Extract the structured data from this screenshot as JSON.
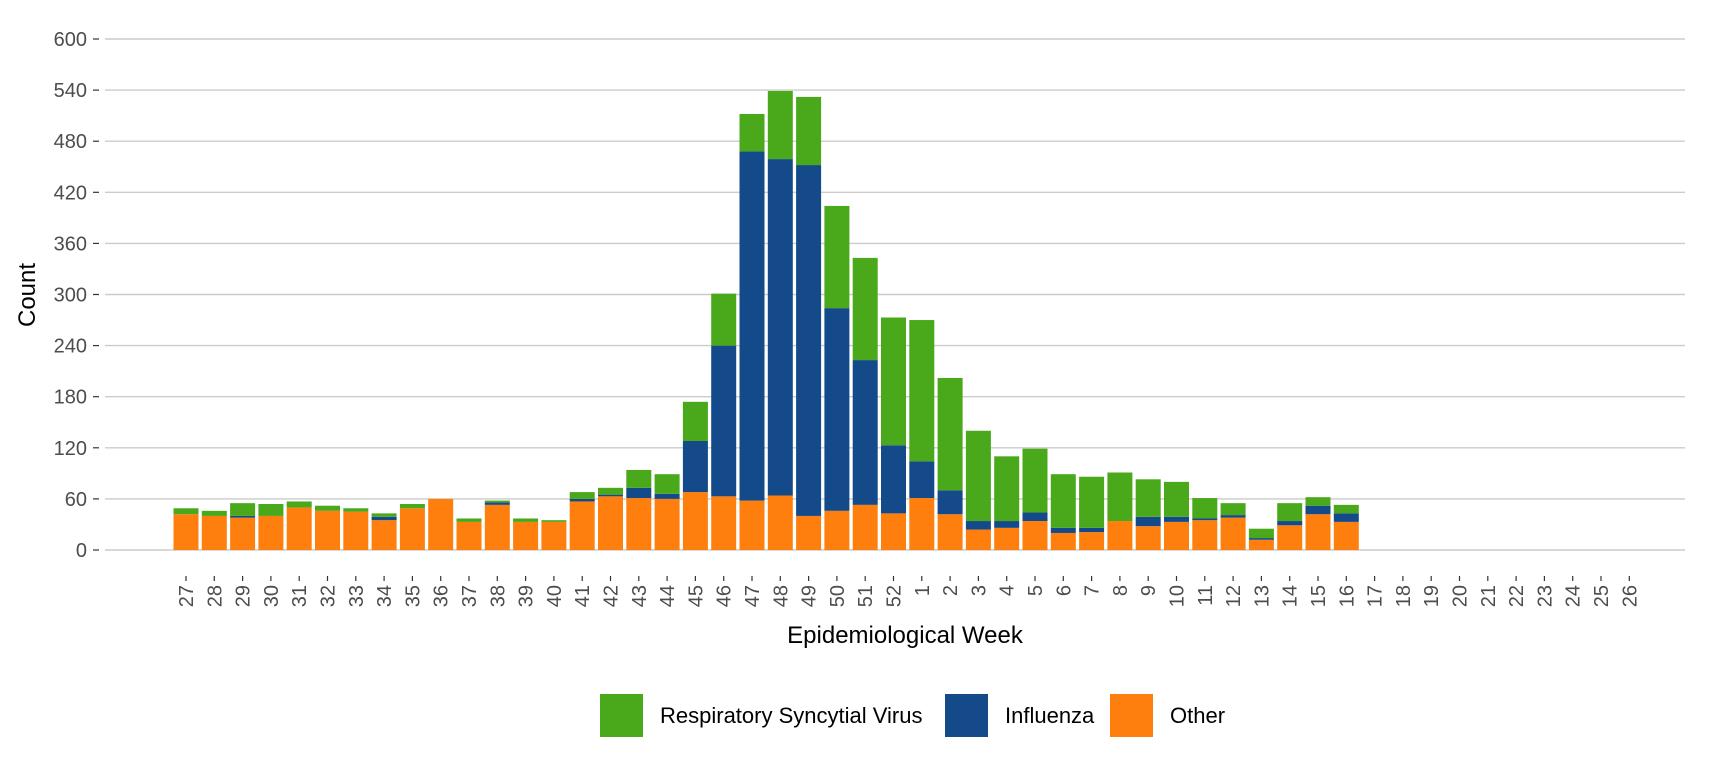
{
  "chart_data": {
    "type": "bar",
    "stacked": true,
    "xlabel": "Epidemiological Week",
    "ylabel": "Count",
    "ylim": [
      0,
      600
    ],
    "yticks": [
      0,
      60,
      120,
      180,
      240,
      300,
      360,
      420,
      480,
      540,
      600
    ],
    "grid": "horizontal",
    "legend_position": "bottom",
    "categories": [
      "27",
      "28",
      "29",
      "30",
      "31",
      "32",
      "33",
      "34",
      "35",
      "36",
      "37",
      "38",
      "39",
      "40",
      "41",
      "42",
      "43",
      "44",
      "45",
      "46",
      "47",
      "48",
      "49",
      "50",
      "51",
      "52",
      "1",
      "2",
      "3",
      "4",
      "5",
      "6",
      "7",
      "8",
      "9",
      "10",
      "11",
      "12",
      "13",
      "14",
      "15",
      "16",
      "17",
      "18",
      "19",
      "20",
      "21",
      "22",
      "23",
      "24",
      "25",
      "26"
    ],
    "series": [
      {
        "name": "Other",
        "color": "#ff7f0e",
        "values": [
          42,
          40,
          38,
          40,
          50,
          46,
          45,
          35,
          49,
          60,
          33,
          53,
          33,
          33,
          57,
          63,
          61,
          60,
          68,
          63,
          58,
          64,
          40,
          46,
          53,
          43,
          61,
          42,
          24,
          26,
          34,
          20,
          21,
          34,
          28,
          33,
          35,
          38,
          12,
          29,
          42,
          33,
          0,
          0,
          0,
          0,
          0,
          0,
          0,
          0,
          0,
          0
        ]
      },
      {
        "name": "Influenza",
        "color": "#144a8a",
        "values": [
          0,
          0,
          2,
          0,
          0,
          0,
          0,
          4,
          0,
          0,
          0,
          3,
          0,
          0,
          3,
          2,
          12,
          6,
          60,
          177,
          410,
          395,
          412,
          238,
          170,
          80,
          43,
          28,
          10,
          8,
          10,
          6,
          5,
          0,
          11,
          6,
          2,
          3,
          2,
          5,
          10,
          10,
          0,
          0,
          0,
          0,
          0,
          0,
          0,
          0,
          0,
          0
        ]
      },
      {
        "name": "Respiratory Syncytial Virus",
        "color": "#4aa81b",
        "values": [
          7,
          6,
          15,
          14,
          7,
          6,
          4,
          4,
          5,
          0,
          4,
          2,
          4,
          2,
          8,
          8,
          21,
          23,
          46,
          61,
          44,
          80,
          80,
          120,
          120,
          150,
          166,
          132,
          106,
          76,
          75,
          63,
          60,
          57,
          44,
          41,
          24,
          14,
          11,
          21,
          10,
          10,
          0,
          0,
          0,
          0,
          0,
          0,
          0,
          0,
          0,
          0
        ]
      }
    ],
    "legend": [
      {
        "name": "Respiratory Syncytial Virus",
        "color": "#4aa81b"
      },
      {
        "name": "Influenza",
        "color": "#144a8a"
      },
      {
        "name": "Other",
        "color": "#ff7f0e"
      }
    ]
  }
}
